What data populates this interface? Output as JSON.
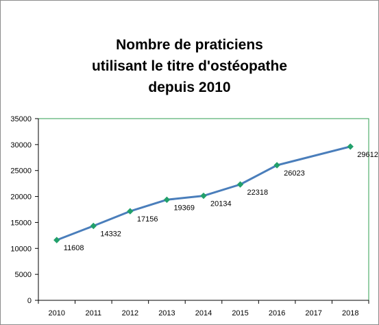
{
  "chart_data": {
    "type": "line",
    "title_lines": [
      "Nombre de praticiens",
      "utilisant le titre d'ostéopathe",
      "depuis 2010"
    ],
    "categories": [
      "2010",
      "2011",
      "2012",
      "2013",
      "2014",
      "2015",
      "2016",
      "2017",
      "2018"
    ],
    "series": [
      {
        "points": [
          {
            "x": "2010",
            "y": 11608,
            "label": "11608"
          },
          {
            "x": "2011",
            "y": 14332,
            "label": "14332"
          },
          {
            "x": "2012",
            "y": 17156,
            "label": "17156"
          },
          {
            "x": "2013",
            "y": 19369,
            "label": "19369"
          },
          {
            "x": "2014",
            "y": 20134,
            "label": "20134"
          },
          {
            "x": "2015",
            "y": 22318,
            "label": "22318"
          },
          {
            "x": "2016",
            "y": 26023,
            "label": "26023"
          },
          {
            "x": "2018",
            "y": 29612,
            "label": "29612"
          }
        ],
        "line_color": "#4a7ebb",
        "marker_color": "#22a06b",
        "marker": "diamond"
      }
    ],
    "y_ticks": [
      "0",
      "5000",
      "10000",
      "15000",
      "20000",
      "25000",
      "30000",
      "35000"
    ],
    "ylim": [
      0,
      35000
    ],
    "grid": false,
    "legend": "none",
    "plot_border_color": "#2e9e4f"
  }
}
